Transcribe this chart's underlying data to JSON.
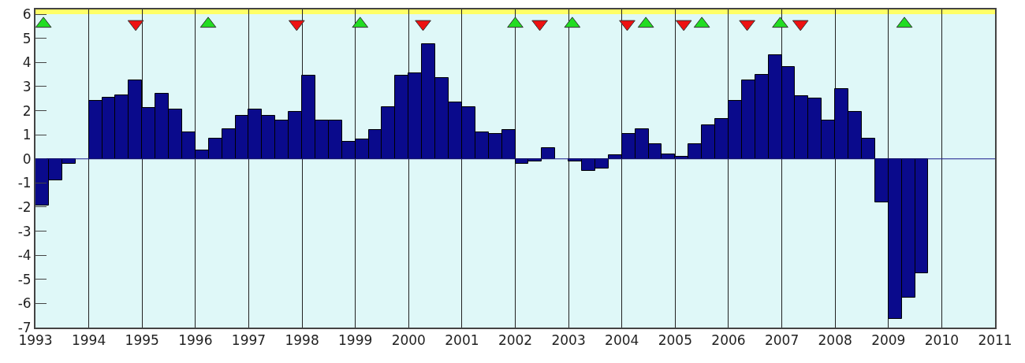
{
  "chart_data": {
    "type": "bar",
    "xlim": [
      1993,
      2011
    ],
    "xticks": [
      1993,
      1994,
      1995,
      1996,
      1997,
      1998,
      1999,
      2000,
      2001,
      2002,
      2003,
      2004,
      2005,
      2006,
      2007,
      2008,
      2009,
      2010,
      2011
    ],
    "ylim": [
      -7,
      6.2
    ],
    "yticks": [
      -7,
      -6,
      -5,
      -4,
      -3,
      -2,
      -1,
      0,
      1,
      2,
      3,
      4,
      5,
      6
    ],
    "grid": "x",
    "ref_lines": [
      {
        "axis": "y",
        "value": 0,
        "color": "#1a1a8c"
      }
    ],
    "bands": [
      {
        "axis": "y",
        "from": 6,
        "to": 6.2,
        "color": "#ffff66"
      }
    ],
    "series": [
      {
        "color": "#0a0a8c",
        "x": [
          1993.125,
          1993.375,
          1993.625,
          1993.875,
          1994.125,
          1994.375,
          1994.625,
          1994.875,
          1995.125,
          1995.375,
          1995.625,
          1995.875,
          1996.125,
          1996.375,
          1996.625,
          1996.875,
          1997.125,
          1997.375,
          1997.625,
          1997.875,
          1998.125,
          1998.375,
          1998.625,
          1998.875,
          1999.125,
          1999.375,
          1999.625,
          1999.875,
          2000.125,
          2000.375,
          2000.625,
          2000.875,
          2001.125,
          2001.375,
          2001.625,
          2001.875,
          2002.125,
          2002.375,
          2002.625,
          2002.875,
          2003.125,
          2003.375,
          2003.625,
          2003.875,
          2004.125,
          2004.375,
          2004.625,
          2004.875,
          2005.125,
          2005.375,
          2005.625,
          2005.875,
          2006.125,
          2006.375,
          2006.625,
          2006.875,
          2007.125,
          2007.375,
          2007.625,
          2007.875,
          2008.125,
          2008.375,
          2008.625,
          2008.875,
          2009.125,
          2009.375,
          2009.625
        ],
        "values": [
          -1.95,
          -0.9,
          -0.2,
          null,
          2.4,
          2.55,
          2.65,
          3.25,
          2.1,
          2.7,
          2.05,
          1.1,
          0.35,
          0.85,
          1.25,
          1.8,
          2.05,
          1.8,
          1.6,
          1.95,
          3.45,
          1.6,
          1.6,
          0.7,
          0.8,
          1.2,
          2.15,
          3.45,
          3.55,
          4.75,
          3.35,
          2.35,
          2.15,
          1.1,
          1.05,
          1.2,
          -0.2,
          -0.1,
          0.45,
          null,
          -0.1,
          -0.5,
          -0.4,
          0.15,
          1.05,
          1.25,
          0.6,
          0.2,
          0.1,
          0.6,
          1.4,
          1.65,
          2.4,
          3.25,
          3.5,
          4.3,
          3.8,
          2.6,
          2.5,
          1.6,
          2.9,
          1.95,
          0.85,
          -1.8,
          -6.65,
          -5.75,
          -4.75
        ]
      },
      {
        "type": "scatter",
        "marker": "triangle-up",
        "color": "#22dd22",
        "x": [
          1993.15,
          1996.24,
          1999.09,
          2002.0,
          2003.07,
          2004.45,
          2005.5,
          2006.97,
          2009.3
        ],
        "values": [
          5.6,
          5.6,
          5.6,
          5.6,
          5.6,
          5.6,
          5.6,
          5.6,
          5.6
        ]
      },
      {
        "type": "scatter",
        "marker": "triangle-down",
        "color": "#ee1111",
        "x": [
          1994.88,
          1997.9,
          2000.27,
          2002.46,
          2004.1,
          2005.16,
          2006.35,
          2007.35
        ],
        "values": [
          5.6,
          5.6,
          5.6,
          5.6,
          5.6,
          5.6,
          5.6,
          5.6
        ]
      }
    ]
  }
}
